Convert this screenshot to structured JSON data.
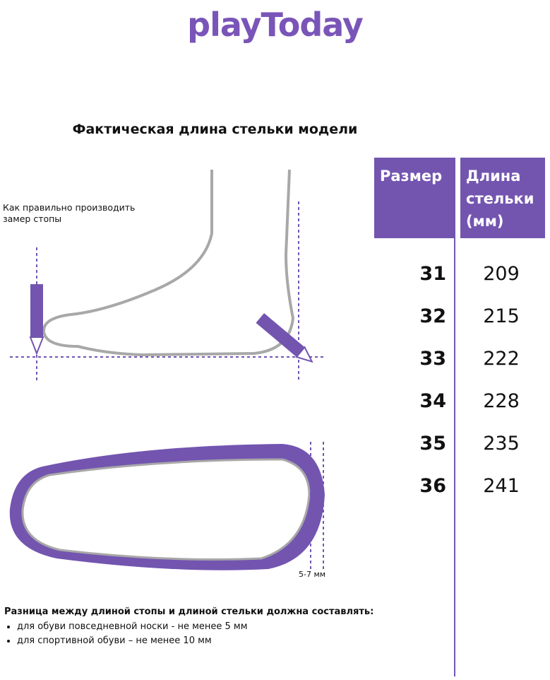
{
  "logo": "playToday",
  "title": "Фактическая длина стельки модели",
  "measure_note": [
    "Как правильно производить",
    "замер стопы"
  ],
  "table": {
    "headers": [
      "Размер",
      "Длина стельки (мм)"
    ],
    "header_lines": [
      "Длина",
      "стельки",
      "(мм)"
    ],
    "rows": [
      {
        "size": "31",
        "length": "209"
      },
      {
        "size": "32",
        "length": "215"
      },
      {
        "size": "33",
        "length": "222"
      },
      {
        "size": "34",
        "length": "228"
      },
      {
        "size": "35",
        "length": "235"
      },
      {
        "size": "36",
        "length": "241"
      }
    ]
  },
  "gap_label": "5-7 мм",
  "difference": {
    "heading": "Разница между длиной стопы и длиной стельки должна составлять:",
    "items": [
      "для обуви повседневной носки -  не менее 5 мм",
      "для спортивной обуви – не менее 10 мм"
    ]
  },
  "colors": {
    "accent": "#7355b0",
    "outline": "#a8a8a8"
  }
}
